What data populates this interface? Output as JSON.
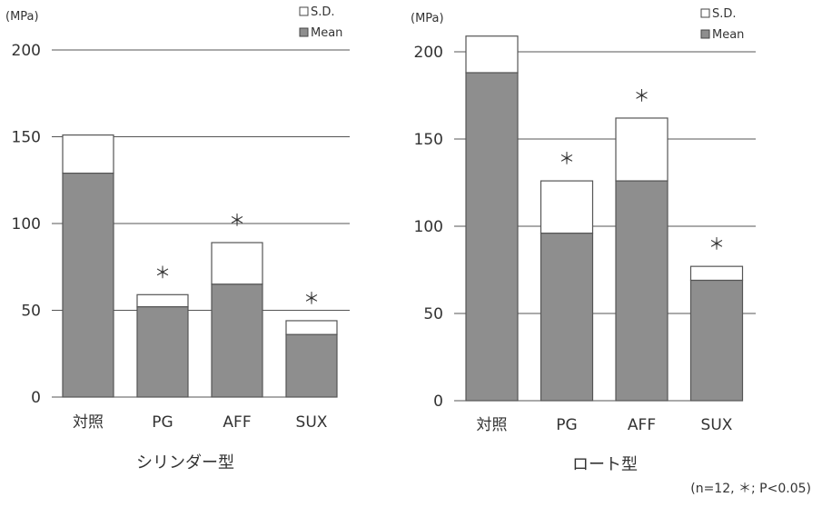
{
  "chart_data": [
    {
      "type": "bar",
      "title": "シリンダー型",
      "ylabel": "(MPa)",
      "ylim": [
        0,
        200
      ],
      "yticks": [
        "0",
        "50",
        "100",
        "150",
        "200"
      ],
      "categories": [
        "対照",
        "PG",
        "AFF",
        "SUX"
      ],
      "series": [
        {
          "name": "Mean",
          "values": [
            129,
            52,
            65,
            36
          ]
        },
        {
          "name": "S.D.",
          "values": [
            22,
            7,
            24,
            8
          ]
        }
      ],
      "significance": [
        "",
        "＊",
        "＊",
        "＊"
      ],
      "legend": [
        "S.D.",
        "Mean"
      ],
      "legend_position": "top-right",
      "colors": {
        "mean": "#8e8e8e",
        "sd": "#ffffff",
        "grid": "#555555",
        "axis": "#555555"
      }
    },
    {
      "type": "bar",
      "title": "ロート型",
      "ylabel": "(MPa)",
      "ylim": [
        0,
        200
      ],
      "yticks": [
        "0",
        "50",
        "100",
        "150",
        "200"
      ],
      "categories": [
        "対照",
        "PG",
        "AFF",
        "SUX"
      ],
      "series": [
        {
          "name": "Mean",
          "values": [
            188,
            96,
            126,
            69
          ]
        },
        {
          "name": "S.D.",
          "values": [
            21,
            30,
            36,
            8
          ]
        }
      ],
      "significance": [
        "",
        "＊",
        "＊",
        "＊"
      ],
      "legend": [
        "S.D.",
        "Mean"
      ],
      "legend_position": "top-right",
      "colors": {
        "mean": "#8e8e8e",
        "sd": "#ffffff",
        "grid": "#555555",
        "axis": "#555555"
      }
    }
  ],
  "footnote": "(n=12, ＊; P<0.05)"
}
